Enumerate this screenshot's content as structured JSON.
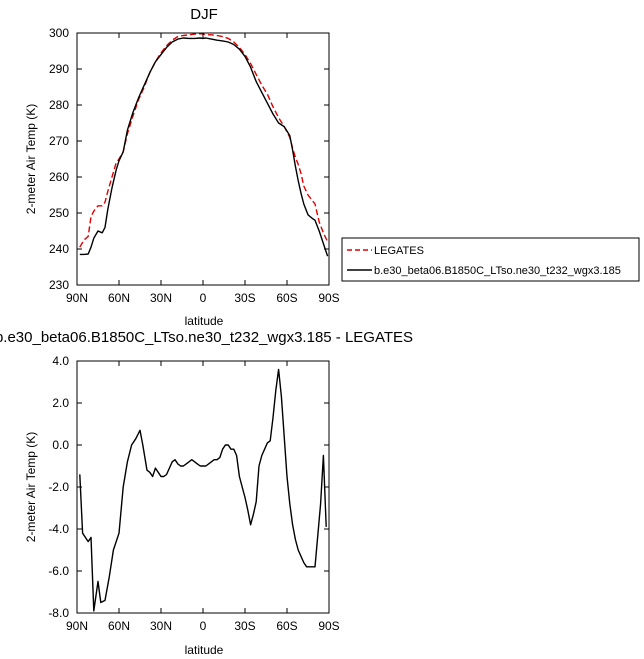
{
  "chart_data": [
    {
      "type": "line",
      "title": "DJF",
      "xlabel": "latitude",
      "ylabel": "2-meter Air Temp (K)",
      "xlim": [
        90,
        -90
      ],
      "ylim": [
        230,
        300
      ],
      "xticks": [
        90,
        60,
        30,
        0,
        -30,
        -60,
        -90
      ],
      "xtick_labels": [
        "90N",
        "60N",
        "30N",
        "0",
        "30S",
        "60S",
        "90S"
      ],
      "yticks": [
        230,
        240,
        250,
        260,
        270,
        280,
        290,
        300
      ],
      "ytick_labels": [
        "230",
        "240",
        "250",
        "260",
        "270",
        "280",
        "290",
        "300"
      ],
      "legend_position": "right",
      "series": [
        {
          "name": "LEGATES",
          "color": "#e00000",
          "dash": "dashed",
          "x": [
            88,
            85,
            82,
            80,
            78,
            75,
            72,
            70,
            68,
            65,
            62,
            60,
            57,
            54,
            50,
            46,
            42,
            38,
            34,
            30,
            26,
            22,
            18,
            14,
            10,
            6,
            2,
            0,
            -2,
            -6,
            -10,
            -14,
            -18,
            -22,
            -26,
            -30,
            -34,
            -38,
            -42,
            -46,
            -50,
            -54,
            -58,
            -62,
            -64,
            -66,
            -68,
            -70,
            -72,
            -75,
            -78,
            -80,
            -83,
            -86,
            -89
          ],
          "y": [
            240.5,
            242.5,
            243.5,
            249,
            250.5,
            252,
            252,
            253,
            256,
            260,
            264,
            265,
            267,
            272,
            277,
            281.5,
            285,
            289,
            292,
            294.5,
            296.5,
            298,
            299,
            299.3,
            299.5,
            299.7,
            299.8,
            299.7,
            299.5,
            299.5,
            299.3,
            299,
            298.5,
            297.5,
            296,
            294,
            291.5,
            288.5,
            285.5,
            283,
            279.5,
            276.5,
            274,
            271,
            268,
            265.5,
            263.5,
            261,
            257.5,
            255,
            253.5,
            252.5,
            247.5,
            244.5,
            242
          ]
        },
        {
          "name": "b.e30_beta06.B1850C_LTso.ne30_t232_wgx3.185",
          "color": "#000000",
          "dash": "solid",
          "x": [
            88,
            85,
            82,
            80,
            78,
            75,
            72,
            70,
            68,
            65,
            62,
            60,
            57,
            54,
            50,
            46,
            42,
            38,
            34,
            30,
            26,
            22,
            18,
            14,
            10,
            6,
            2,
            0,
            -2,
            -6,
            -10,
            -14,
            -18,
            -22,
            -26,
            -30,
            -34,
            -38,
            -42,
            -46,
            -50,
            -54,
            -58,
            -62,
            -64,
            -66,
            -68,
            -70,
            -72,
            -75,
            -78,
            -80,
            -83,
            -86,
            -89
          ],
          "y": [
            238.5,
            238.5,
            238.6,
            240.5,
            243,
            245,
            244.5,
            246,
            251,
            257,
            262,
            264.5,
            267,
            273,
            278,
            282,
            285.5,
            289,
            292,
            294,
            296,
            297.5,
            298.3,
            298.6,
            298.5,
            298.5,
            298.6,
            298.5,
            298.6,
            298.3,
            298,
            297.8,
            297.5,
            296.8,
            295.5,
            293.5,
            290.5,
            286.5,
            283.5,
            280.5,
            277.5,
            275,
            274,
            271.5,
            267.5,
            263,
            259,
            255.5,
            252.5,
            249.5,
            248.5,
            248,
            245,
            241.5,
            238
          ]
        }
      ]
    },
    {
      "type": "line",
      "title": "b.e30_beta06.B1850C_LTso.ne30_t232_wgx3.185 - LEGATES",
      "xlabel": "latitude",
      "ylabel": "2-meter Air Temp (K)",
      "xlim": [
        90,
        -90
      ],
      "ylim": [
        -8.0,
        4.0
      ],
      "xticks": [
        90,
        60,
        30,
        0,
        -30,
        -60,
        -90
      ],
      "xtick_labels": [
        "90N",
        "60N",
        "30N",
        "0",
        "30S",
        "60S",
        "90S"
      ],
      "yticks": [
        -8.0,
        -6.0,
        -4.0,
        -2.0,
        0.0,
        2.0,
        4.0
      ],
      "ytick_labels": [
        "-8.0",
        "-6.0",
        "-4.0",
        "-2.0",
        "0.0",
        "2.0",
        "4.0"
      ],
      "series": [
        {
          "color": "#000000",
          "x": [
            88,
            86,
            82,
            80,
            78,
            75,
            73,
            70,
            67,
            64,
            60,
            57,
            54,
            51,
            48,
            45,
            43,
            40,
            38,
            36,
            34,
            32,
            30,
            28,
            26,
            24,
            22,
            20,
            18,
            16,
            14,
            12,
            10,
            8,
            6,
            4,
            2,
            0,
            -2,
            -4,
            -6,
            -8,
            -10,
            -12,
            -14,
            -16,
            -18,
            -20,
            -22,
            -24,
            -26,
            -28,
            -30,
            -32,
            -34,
            -36,
            -38,
            -40,
            -42,
            -44,
            -46,
            -48,
            -50,
            -52,
            -54,
            -56,
            -58,
            -60,
            -62,
            -64,
            -66,
            -68,
            -70,
            -72,
            -74,
            -76,
            -78,
            -80,
            -82,
            -84,
            -86,
            -88
          ],
          "y": [
            -1.4,
            -4.2,
            -4.6,
            -4.4,
            -7.9,
            -6.5,
            -7.5,
            -7.4,
            -6.3,
            -5.0,
            -4.2,
            -2.0,
            -0.8,
            0.0,
            0.3,
            0.7,
            0.0,
            -1.2,
            -1.3,
            -1.5,
            -1.1,
            -1.3,
            -1.5,
            -1.5,
            -1.4,
            -1.1,
            -0.8,
            -0.7,
            -0.9,
            -1.0,
            -1.0,
            -0.9,
            -0.8,
            -0.7,
            -0.8,
            -0.9,
            -1.0,
            -1.0,
            -1.0,
            -0.9,
            -0.8,
            -0.7,
            -0.7,
            -0.6,
            -0.2,
            0.0,
            0.0,
            -0.2,
            -0.2,
            -0.5,
            -1.5,
            -2.0,
            -2.5,
            -3.1,
            -3.8,
            -3.3,
            -2.7,
            -1.0,
            -0.5,
            -0.2,
            0.1,
            0.2,
            1.3,
            2.6,
            3.6,
            2.3,
            0.4,
            -1.5,
            -2.8,
            -3.8,
            -4.5,
            -5.0,
            -5.3,
            -5.6,
            -5.8,
            -5.8,
            -5.8,
            -5.8,
            -4.3,
            -2.8,
            -0.5,
            -3.9
          ]
        }
      ]
    }
  ]
}
